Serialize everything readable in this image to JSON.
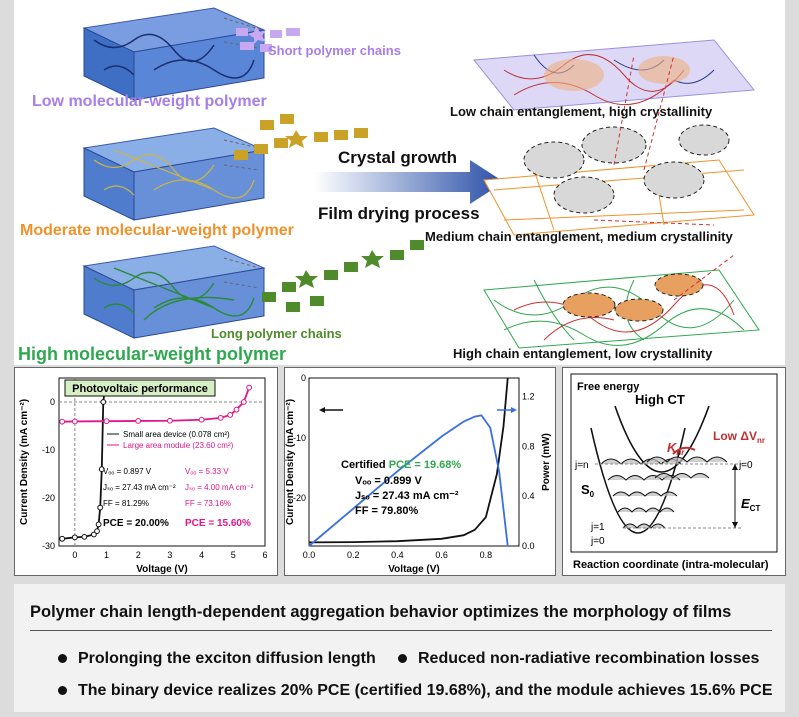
{
  "top_panel": {
    "short_chains": "Short polymer chains",
    "low_mw": "Low molecular-weight polymer",
    "low_result": "Low chain entanglement, high crystallinity",
    "crystal_growth": "Crystal growth",
    "film_drying": "Film drying process",
    "moderate_mw": "Moderate molecular-weight polymer",
    "medium_result": "Medium chain entanglement, medium crystallinity",
    "long_chains": "Long polymer chains",
    "high_mw": "High molecular-weight polymer",
    "high_result": "High chain entanglement, low crystallinity"
  },
  "colors": {
    "purple": "#a87ee8",
    "orange": "#f0922b",
    "green": "#2fa84f",
    "magenta": "#e0168a",
    "blue": "#3a6fe0",
    "gold": "#c9a227",
    "darkgreen": "#4f8a2b"
  },
  "chart1": {
    "banner": "Photovoltaic performance",
    "ylabel": "Current Density (mA cm⁻²)",
    "xlabel": "Voltage (V)",
    "xticks": [
      "0",
      "1",
      "2",
      "3",
      "4",
      "5",
      "6"
    ],
    "yticks": [
      "0",
      "-10",
      "-20",
      "-30"
    ],
    "legend_small": "Small area device (0.078 cm²)",
    "legend_large": "Large area module (23.60 cm²)",
    "voc_small": "Vₒₒ = 0.897 V",
    "jsc_small": "Jₛₒ = 27.43 mA cm⁻²",
    "ff_small": "FF = 81.29%",
    "pce_small": "PCE = 20.00%",
    "voc_large": "Vₒₒ = 5.33 V",
    "jsc_large": "Jₛₒ = 4.00 mA cm⁻²",
    "ff_large": "FF = 73.16%",
    "pce_large": "PCE = 15.60%"
  },
  "chart2": {
    "ylabel_left": "Current Density (mA cm⁻²)",
    "ylabel_right": "Power (mW)",
    "xlabel": "Voltage (V)",
    "xticks": [
      "0.0",
      "0.2",
      "0.4",
      "0.6",
      "0.8"
    ],
    "yticks_left": [
      "0",
      "-10",
      "-20"
    ],
    "yticks_right": [
      "0.0",
      "0.4",
      "0.8",
      "1.2"
    ],
    "certified_prefix": "Certified ",
    "certified_pce": "PCE = 19.68%",
    "voc": "Vₒₒ = 0.899 V",
    "jsc": "Jₛₒ = 27.43 mA cm⁻²",
    "ff": "FF = 79.80%"
  },
  "chart3": {
    "free_energy": "Free energy",
    "high_ct": "High CT",
    "low_dvnr": "Low ΔV",
    "knr": "K",
    "j_n": "j=n",
    "j_0_top": "j=0",
    "s0": "S",
    "ect": "E",
    "j_1": "j=1",
    "j_0": "j=0",
    "xlabel": "Reaction coordinate (intra-molecular)"
  },
  "summary": {
    "title": "Polymer chain length-dependent aggregation behavior optimizes the morphology of films",
    "bullet1": "Prolonging the exciton diffusion length",
    "bullet2": "Reduced non-radiative recombination losses",
    "bullet3": "The binary device realizes 20% PCE (certified 19.68%), and the module achieves 15.6% PCE"
  },
  "chart_data": [
    {
      "type": "line",
      "title": "Photovoltaic performance",
      "xlabel": "Voltage (V)",
      "ylabel": "Current Density (mA cm⁻²)",
      "xlim": [
        -0.5,
        6
      ],
      "ylim": [
        -30,
        5
      ],
      "series": [
        {
          "name": "Small area device (0.078 cm²)",
          "color": "#111111",
          "x": [
            -0.4,
            0,
            0.3,
            0.6,
            0.7,
            0.75,
            0.8,
            0.85,
            0.897,
            0.95
          ],
          "y": [
            -28.5,
            -28.2,
            -28.1,
            -27.6,
            -26.9,
            -25.5,
            -22,
            -14,
            0,
            3
          ]
        },
        {
          "name": "Large area module (23.60 cm²)",
          "color": "#e0168a",
          "x": [
            -0.4,
            0,
            1,
            2,
            3,
            4,
            4.6,
            4.9,
            5.1,
            5.33,
            5.5
          ],
          "y": [
            -4.1,
            -4.05,
            -4.0,
            -3.95,
            -3.9,
            -3.7,
            -3.3,
            -2.7,
            -1.6,
            0,
            3
          ]
        }
      ]
    },
    {
      "type": "line",
      "xlabel": "Voltage (V)",
      "ylabel": "Current Density (mA cm⁻²)",
      "ylabel_right": "Power (mW)",
      "xlim": [
        0,
        0.95
      ],
      "ylim": [
        -28,
        0
      ],
      "ylim_right": [
        0,
        1.35
      ],
      "series": [
        {
          "axis": "left",
          "color": "#111111",
          "x": [
            0,
            0.2,
            0.4,
            0.6,
            0.7,
            0.75,
            0.8,
            0.85,
            0.88,
            0.899
          ],
          "y": [
            -27.4,
            -27.35,
            -27.2,
            -26.8,
            -26.2,
            -25.3,
            -23.2,
            -16,
            -8,
            0
          ]
        },
        {
          "axis": "right",
          "color": "#3a6fe0",
          "x": [
            0,
            0.2,
            0.4,
            0.6,
            0.7,
            0.75,
            0.78,
            0.82,
            0.86,
            0.899
          ],
          "y": [
            0,
            0.3,
            0.6,
            0.88,
            1.0,
            1.04,
            1.05,
            0.95,
            0.6,
            0
          ]
        }
      ]
    }
  ]
}
